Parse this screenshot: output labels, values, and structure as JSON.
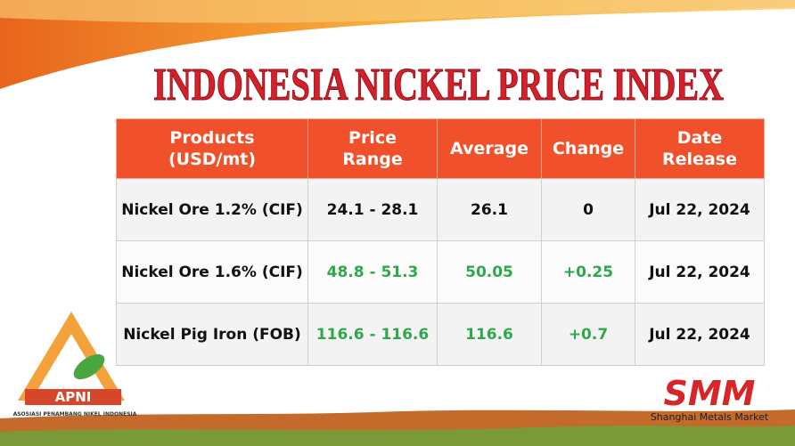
{
  "title": "INDONESIA NICKEL PRICE INDEX",
  "table": {
    "header": [
      [
        "Products",
        "(USD/mt)"
      ],
      [
        "Price",
        "Range"
      ],
      [
        "Average"
      ],
      [
        "Change"
      ],
      [
        "Date",
        "Release"
      ]
    ],
    "rows": [
      [
        "Nickel Ore 1.2% (CIF)",
        "24.1 - 28.1",
        "26.1",
        "0",
        "Jul 22, 2024"
      ],
      [
        "Nickel Ore 1.6% (CIF)",
        "48.8 - 51.3",
        "50.05",
        "+0.25",
        "Jul 22, 2024"
      ],
      [
        "Nickel Pig Iron (FOB)",
        "116.6 - 116.6",
        "116.6",
        "+0.7",
        "Jul 22, 2024"
      ]
    ]
  },
  "logos": {
    "apni": "APNI",
    "apni_full": "ASOSIASI PENAMBANG NIKEL INDONESIA",
    "smm": "SMM",
    "smm_full": "Shanghai Metals Market"
  }
}
